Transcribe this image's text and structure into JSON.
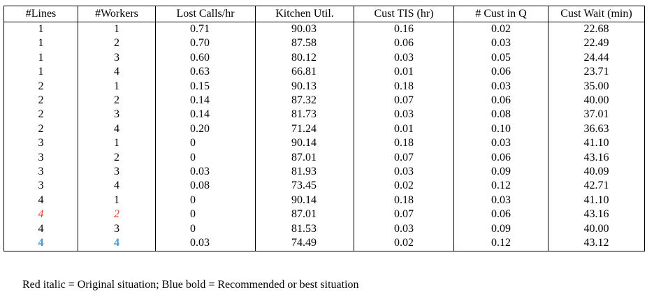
{
  "table": {
    "headers": [
      "#Lines",
      "#Workers",
      "Lost Calls/hr",
      "Kitchen Util.",
      "Cust TIS (hr)",
      "# Cust in Q",
      "Cust Wait (min)"
    ],
    "rows": [
      [
        "1",
        "1",
        "0.71",
        "90.03",
        "0.16",
        "0.02",
        "22.68"
      ],
      [
        "1",
        "2",
        "0.70",
        "87.58",
        "0.06",
        "0.03",
        "22.49"
      ],
      [
        "1",
        "3",
        "0.60",
        "80.12",
        "0.03",
        "0.05",
        "24.44"
      ],
      [
        "1",
        "4",
        "0.63",
        "66.81",
        "0.01",
        "0.06",
        "23.71"
      ],
      [
        "2",
        "1",
        "0.15",
        "90.13",
        "0.18",
        "0.03",
        "35.00"
      ],
      [
        "2",
        "2",
        "0.14",
        "87.32",
        "0.07",
        "0.06",
        "40.00"
      ],
      [
        "2",
        "3",
        "0.14",
        "81.73",
        "0.03",
        "0.08",
        "37.01"
      ],
      [
        "2",
        "4",
        "0.20",
        "71.24",
        "0.01",
        "0.10",
        "36.63"
      ],
      [
        "3",
        "1",
        "0",
        "90.14",
        "0.18",
        "0.03",
        "41.10"
      ],
      [
        "3",
        "2",
        "0",
        "87.01",
        "0.07",
        "0.06",
        "43.16"
      ],
      [
        "3",
        "3",
        "0.03",
        "81.93",
        "0.03",
        "0.09",
        "40.09"
      ],
      [
        "3",
        "4",
        "0.08",
        "73.45",
        "0.02",
        "0.12",
        "42.71"
      ],
      [
        "4",
        "1",
        "0",
        "90.14",
        "0.18",
        "0.03",
        "41.10"
      ],
      [
        "4",
        "2",
        "0",
        "87.01",
        "0.07",
        "0.06",
        "43.16"
      ],
      [
        "4",
        "3",
        "0",
        "81.53",
        "0.03",
        "0.09",
        "40.00"
      ],
      [
        "4",
        "4",
        "0.03",
        "74.49",
        "0.02",
        "0.12",
        "43.12"
      ]
    ],
    "highlight_colors": {
      "red_italic_row": "#e8412f",
      "blue_bold_row": "#3a9be0"
    }
  },
  "footnote": "Red italic = Original situation;  Blue bold = Recommended or best situation"
}
